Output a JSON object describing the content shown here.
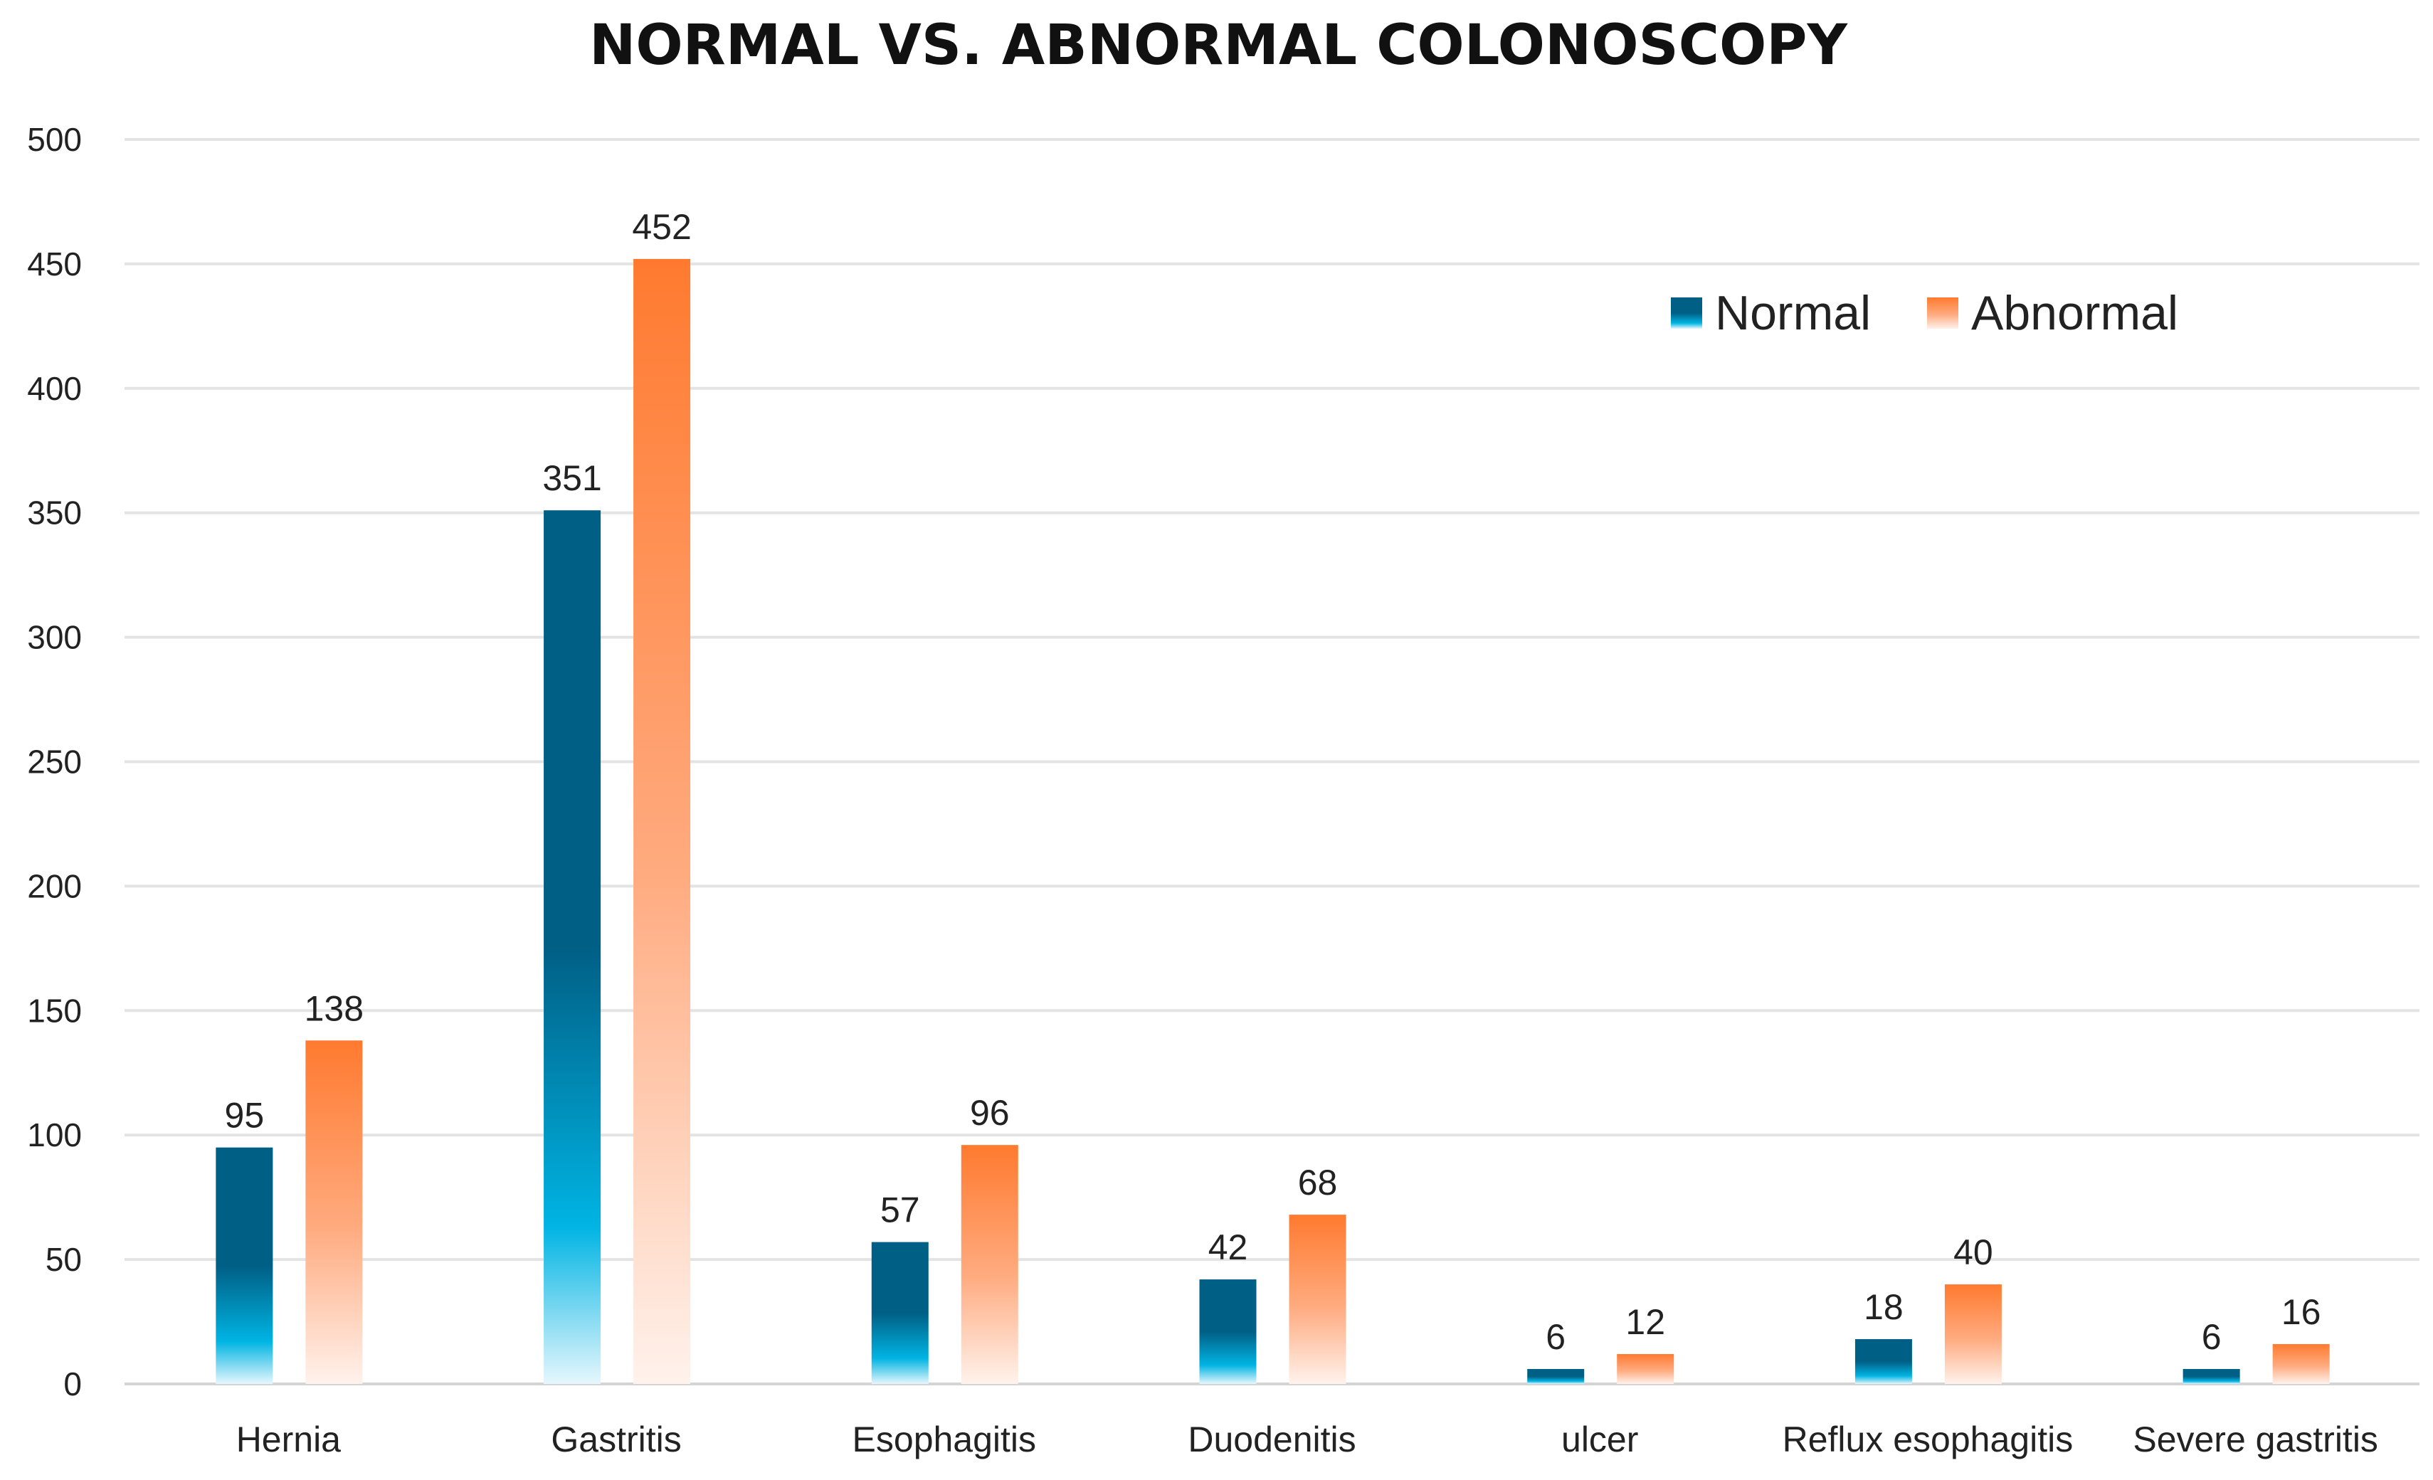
{
  "chart_data": {
    "type": "bar",
    "title": "NORMAL VS. ABNORMAL COLONOSCOPY",
    "xlabel": "",
    "ylabel": "",
    "ylim": [
      0,
      500
    ],
    "yticks": [
      0,
      50,
      100,
      150,
      200,
      250,
      300,
      350,
      400,
      450,
      500
    ],
    "grid": true,
    "legend_position": "top-right",
    "categories": [
      "Hernia",
      "Gastritis",
      "Esophagitis",
      "Duodenitis",
      "ulcer",
      "Reflux esophagitis",
      "Severe gastritis"
    ],
    "series": [
      {
        "name": "Normal",
        "values": [
          95,
          351,
          57,
          42,
          6,
          18,
          6
        ],
        "color_dark": "#005f85",
        "color_mid": "#00b4e3",
        "color_light": "#e6f7fd"
      },
      {
        "name": "Abnormal",
        "values": [
          138,
          452,
          96,
          68,
          12,
          40,
          16
        ],
        "color_dark": "#ff7a2f",
        "color_mid": "#ffab80",
        "color_light": "#fff2ec"
      }
    ]
  }
}
